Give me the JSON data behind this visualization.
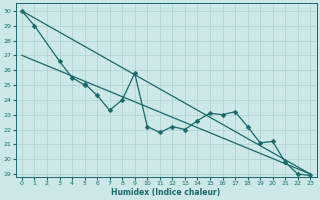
{
  "xlabel": "Humidex (Indice chaleur)",
  "bg_color": "#cce8e8",
  "grid_color": "#aed0d0",
  "line_color": "#1a6868",
  "xlim": [
    -0.5,
    23.5
  ],
  "ylim": [
    18.8,
    30.5
  ],
  "yticks": [
    19,
    20,
    21,
    22,
    23,
    24,
    25,
    26,
    27,
    28,
    29,
    30
  ],
  "xticks": [
    0,
    1,
    2,
    3,
    4,
    5,
    6,
    7,
    8,
    9,
    10,
    11,
    12,
    13,
    14,
    15,
    16,
    17,
    18,
    19,
    20,
    21,
    22,
    23
  ],
  "scatter_x": [
    0,
    1,
    3,
    4,
    5,
    5,
    6,
    7,
    8,
    9,
    10,
    11,
    12,
    13,
    14,
    15,
    16,
    17,
    18,
    19,
    20,
    21,
    22,
    23
  ],
  "scatter_y": [
    30,
    29,
    26.6,
    25.5,
    25.0,
    25.1,
    24.3,
    23.3,
    24.0,
    25.8,
    22.2,
    21.8,
    22.2,
    22.0,
    22.6,
    23.1,
    23.0,
    23.2,
    22.2,
    21.1,
    21.2,
    19.8,
    19.0,
    18.9
  ],
  "line1_x": [
    0,
    23
  ],
  "line1_y": [
    30.0,
    19.0
  ],
  "line2_x": [
    0,
    23
  ],
  "line2_y": [
    27.0,
    19.0
  ],
  "marker_size": 2.5,
  "line_width": 0.9,
  "tick_fontsize": 4.5,
  "xlabel_fontsize": 5.5
}
